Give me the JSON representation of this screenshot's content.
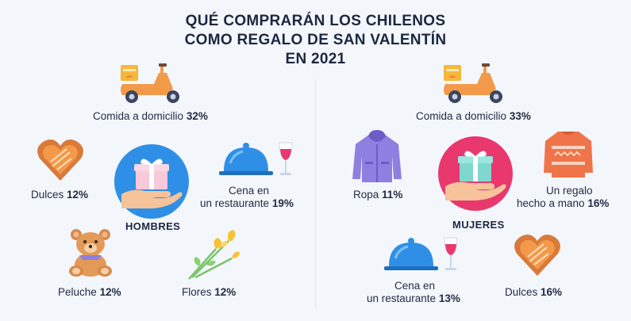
{
  "title": {
    "line1": "QUÉ COMPRARÁN LOS CHILENOS",
    "line2": "COMO REGALO DE SAN VALENTÍN",
    "line3": "EN 2021"
  },
  "colors": {
    "background": "#f3f7fc",
    "orange": "#f5a04a",
    "blue": "#2f8fe6",
    "pink": "#e8386d",
    "purple": "#8f7fe0",
    "brown": "#c77a3c"
  },
  "hombres": {
    "label": "HOMBRES",
    "items": [
      {
        "icon": "scooter-icon",
        "name": "Comida a domicilio",
        "pct": "32%"
      },
      {
        "icon": "heart-chocolate-icon",
        "name": "Dulces",
        "pct": "12%"
      },
      {
        "icon": "cloche-wine-icon",
        "name_line1": "Cena en",
        "name_line2": "un restaurante",
        "pct": "19%"
      },
      {
        "icon": "teddy-bear-icon",
        "name": "Peluche",
        "pct": "12%"
      },
      {
        "icon": "flowers-icon",
        "name": "Flores",
        "pct": "12%"
      }
    ]
  },
  "mujeres": {
    "label": "MUJERES",
    "items": [
      {
        "icon": "scooter-icon",
        "name": "Comida a domicilio",
        "pct": "33%"
      },
      {
        "icon": "jacket-icon",
        "name": "Ropa",
        "pct": "11%"
      },
      {
        "icon": "sweater-icon",
        "name_line1": "Un regalo",
        "name_line2": "hecho a mano",
        "pct": "16%"
      },
      {
        "icon": "cloche-wine-icon",
        "name_line1": "Cena en",
        "name_line2": "un restaurante",
        "pct": "13%"
      },
      {
        "icon": "heart-chocolate-icon",
        "name": "Dulces",
        "pct": "16%"
      }
    ]
  }
}
